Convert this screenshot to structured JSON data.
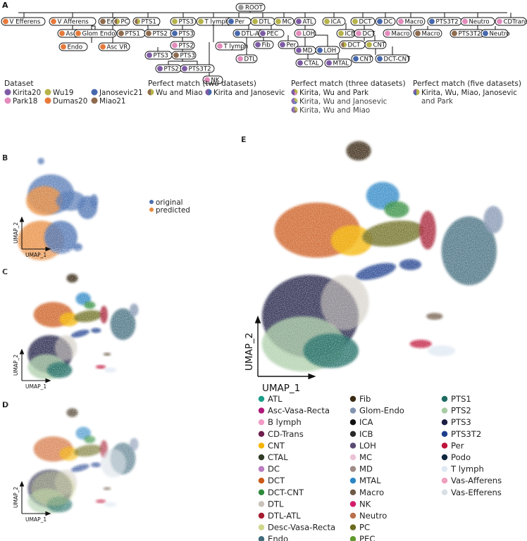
{
  "panels": {
    "a": "A",
    "b": "B",
    "c": "C",
    "d": "D",
    "e": "E"
  },
  "colors": {
    "Kirita20": "#7e5ba5",
    "Park18": "#e48bbd",
    "Wu19": "#b7b34b",
    "Dumas20": "#e7793a",
    "Janosevic21": "#4668ad",
    "Miao21": "#8f6b4e",
    "ROOT": "#999999",
    "original": "#4a6fb0",
    "predicted": "#e88a3b"
  },
  "tree": {
    "root": {
      "label": "ROOT",
      "color": "ROOT"
    },
    "nodes": [
      {
        "label": "V Efferens",
        "c1": "Dumas20"
      },
      {
        "label": "V Afferens",
        "c1": "Dumas20"
      },
      {
        "label": "Endo",
        "c1": "Miao21"
      },
      {
        "label": "PC",
        "c1": "Miao21",
        "c2": "Wu19"
      },
      {
        "label": "PTS1",
        "c1": "Miao21",
        "c2": "Wu19"
      },
      {
        "label": "PTS3",
        "c1": "Wu19"
      },
      {
        "label": "T lymph",
        "c1": "Wu19"
      },
      {
        "label": "Per",
        "c1": "Janosevic21"
      },
      {
        "label": "DTL",
        "c1": "Wu19"
      },
      {
        "label": "MC",
        "c1": "Wu19"
      },
      {
        "label": "ATL",
        "c1": "Kirita20"
      },
      {
        "label": "ICA",
        "c1": "Wu19"
      },
      {
        "label": "DCT",
        "c1": "Wu19"
      },
      {
        "label": "DC",
        "c1": "Janosevic21"
      },
      {
        "label": "Macro",
        "c1": "Park18"
      },
      {
        "label": "PTS3T2",
        "c1": "Janosevic21"
      },
      {
        "label": "Neutro",
        "c1": "Park18"
      },
      {
        "label": "CDTrans",
        "c1": "Park18"
      },
      {
        "label": "Asc VR",
        "c1": "Dumas20"
      },
      {
        "label": "Glom Endo",
        "c1": "Dumas20"
      },
      {
        "label": "Endo",
        "c1": "Dumas20"
      },
      {
        "label": "Asc VR",
        "c1": "Dumas20"
      },
      {
        "label": "PTS1",
        "c1": "Miao21"
      },
      {
        "label": "PTS2",
        "c1": "Miao21"
      },
      {
        "label": "PTS3",
        "c1": "Janosevic21"
      },
      {
        "label": "PTS2",
        "c1": "Park18"
      },
      {
        "label": "PTS3",
        "c1": "Kirita20"
      },
      {
        "label": "PTS3",
        "c1": "Miao21"
      },
      {
        "label": "PTS2",
        "c1": "Kirita20"
      },
      {
        "label": "PTS3T2",
        "c1": "Kirita20"
      },
      {
        "label": "NK",
        "c1": "Park18"
      },
      {
        "label": "T lymph",
        "c1": "Park18"
      },
      {
        "label": "DTL-ATL",
        "c1": "Janosevic21"
      },
      {
        "label": "PEC",
        "c1": "Kirita20"
      },
      {
        "label": "DTL",
        "c1": "Park18"
      },
      {
        "label": "Fib",
        "c1": "Kirita20"
      },
      {
        "label": "Per",
        "c1": "Kirita20"
      },
      {
        "label": "LOH",
        "c1": "Park18"
      },
      {
        "label": "ICB",
        "c1": "Wu19"
      },
      {
        "label": "DCT",
        "c1": "Park18"
      },
      {
        "label": "MD",
        "c1": "Kirita20"
      },
      {
        "label": "LOH",
        "c1": "Janosevic21"
      },
      {
        "label": "DCT",
        "c1": "Miao21",
        "c2": "Wu19"
      },
      {
        "label": "CNT",
        "c1": "Wu19"
      },
      {
        "label": "CTAL",
        "c1": "Kirita20"
      },
      {
        "label": "MTAL",
        "c1": "Kirita20"
      },
      {
        "label": "CNT",
        "c1": "Janosevic21"
      },
      {
        "label": "DCT-CNT",
        "c1": "Janosevic21"
      },
      {
        "label": "Macro",
        "c1": "Park18"
      },
      {
        "label": "Macro",
        "c1": "Miao21"
      },
      {
        "label": "PTS3T2",
        "c1": "Miao21"
      },
      {
        "label": "Neutro",
        "c1": "Janosevic21"
      }
    ]
  },
  "legend_a": {
    "dataset_title": "Dataset",
    "datasets": [
      "Kirita20",
      "Wu19",
      "Janosevic21",
      "Park18",
      "Dumas20",
      "Miao21"
    ],
    "two_title": "Perfect match (two datasets)",
    "two": [
      "Wu and Miao",
      "Kirita and Janosevic"
    ],
    "three_title": "Perfect match (three datasets)",
    "three": [
      "Kirita, Wu and Park",
      "Kirita, Wu and Janosevic",
      "Kirita, Wu and Miao"
    ],
    "five_title": "Perfect match (five datasets)",
    "five_line1": "Kirita, Wu, Miao, Janosevic",
    "five_line2": "and Park"
  },
  "legend_b": {
    "original": "original",
    "predicted": "predicted"
  },
  "axes": {
    "x": "UMAP_1",
    "y": "UMAP_2"
  },
  "celltypes": [
    {
      "name": "ATL",
      "color": "#1b9e8a"
    },
    {
      "name": "Asc-Vasa-Recta",
      "color": "#b0197a"
    },
    {
      "name": "B lymph",
      "color": "#f29cc7"
    },
    {
      "name": "CD-Trans",
      "color": "#6d1f4f"
    },
    {
      "name": "CNT",
      "color": "#f4b400"
    },
    {
      "name": "CTAL",
      "color": "#2f3b26"
    },
    {
      "name": "DC",
      "color": "#b97cc0"
    },
    {
      "name": "DCT",
      "color": "#cc5a1a"
    },
    {
      "name": "DCT-CNT",
      "color": "#2e8b3a"
    },
    {
      "name": "DTL",
      "color": "#c9c2b8"
    },
    {
      "name": "DTL-ATL",
      "color": "#a51c30"
    },
    {
      "name": "Desc-Vasa-Recta",
      "color": "#cfd78c"
    },
    {
      "name": "Endo",
      "color": "#3f6b7b"
    },
    {
      "name": "Fib",
      "color": "#3b2a14"
    },
    {
      "name": "Glom-Endo",
      "color": "#8294b0"
    },
    {
      "name": "ICA",
      "color": "#111111"
    },
    {
      "name": "ICB",
      "color": "#2a2a2a"
    },
    {
      "name": "LOH",
      "color": "#5a4a73"
    },
    {
      "name": "MC",
      "color": "#eac3d6"
    },
    {
      "name": "MD",
      "color": "#9e8a86"
    },
    {
      "name": "MTAL",
      "color": "#2c86c6"
    },
    {
      "name": "Macro",
      "color": "#6e5a47"
    },
    {
      "name": "NK",
      "color": "#d41b6b"
    },
    {
      "name": "Neutro",
      "color": "#b9704b"
    },
    {
      "name": "PC",
      "color": "#6b6a1f"
    },
    {
      "name": "PEC",
      "color": "#5e9a2c"
    },
    {
      "name": "PTS1",
      "color": "#1e6b62"
    },
    {
      "name": "PTS2",
      "color": "#a8cba4"
    },
    {
      "name": "PTS3",
      "color": "#1c1f42"
    },
    {
      "name": "PTS3T2",
      "color": "#1d3e8c"
    },
    {
      "name": "Per",
      "color": "#c0123a"
    },
    {
      "name": "Podo",
      "color": "#0f2740"
    },
    {
      "name": "T lymph",
      "color": "#dfe8f3"
    },
    {
      "name": "Vas-Afferens",
      "color": "#ef9fbe"
    },
    {
      "name": "Vas-Efferens",
      "color": "#d8e0e6"
    }
  ]
}
